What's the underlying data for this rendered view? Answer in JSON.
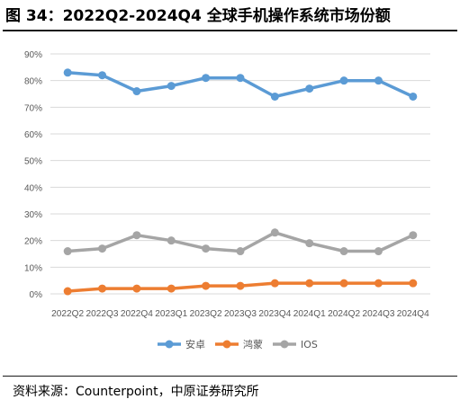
{
  "figure": {
    "title": "图 34：2022Q2-2024Q4 全球手机操作系统市场份额",
    "source": "资料来源：Counterpoint，中原证券研究所"
  },
  "chart_data": {
    "type": "line",
    "title": "",
    "xlabel": "",
    "ylabel": "",
    "ylim": [
      0,
      90
    ],
    "y_ticks": [
      "0%",
      "10%",
      "20%",
      "30%",
      "40%",
      "50%",
      "60%",
      "70%",
      "80%",
      "90%"
    ],
    "grid": true,
    "legend_position": "bottom",
    "categories": [
      "2022Q2",
      "2022Q3",
      "2022Q4",
      "2023Q1",
      "2023Q2",
      "2023Q3",
      "2023Q4",
      "2024Q1",
      "2024Q2",
      "2024Q3",
      "2024Q4"
    ],
    "series": [
      {
        "name": "安卓",
        "color": "#5b9bd5",
        "values": [
          83,
          82,
          76,
          78,
          81,
          81,
          74,
          77,
          80,
          80,
          74
        ]
      },
      {
        "name": "鸿蒙",
        "color": "#ed7d31",
        "values": [
          1,
          2,
          2,
          2,
          3,
          3,
          4,
          4,
          4,
          4,
          4
        ]
      },
      {
        "name": "IOS",
        "color": "#a5a5a5",
        "values": [
          16,
          17,
          22,
          20,
          17,
          16,
          23,
          19,
          16,
          16,
          22
        ]
      }
    ]
  }
}
